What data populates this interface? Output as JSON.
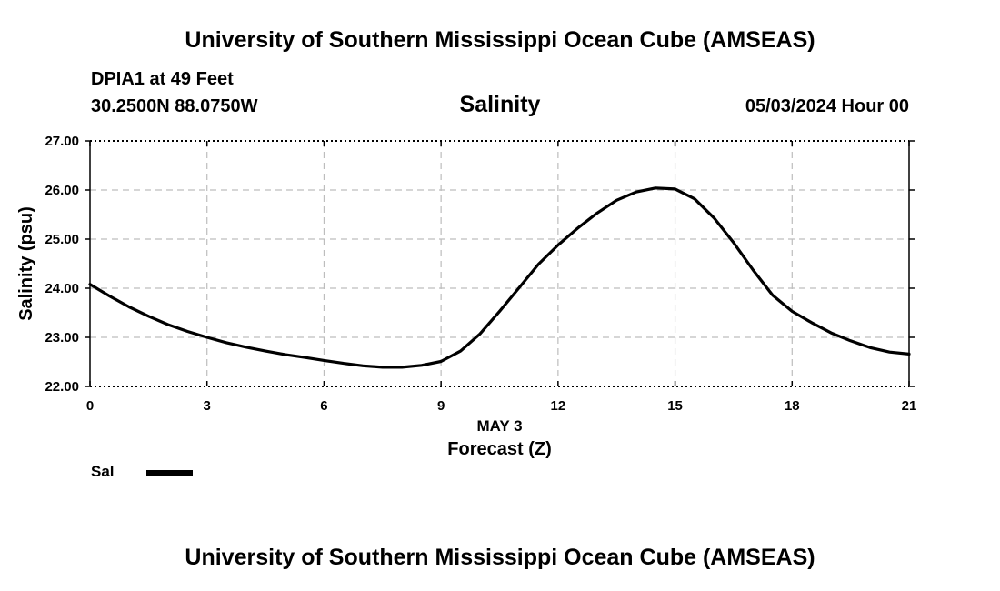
{
  "header": {
    "title": "University of Southern Mississippi Ocean Cube (AMSEAS)",
    "station": "DPIA1 at 49 Feet",
    "coords": "30.2500N  88.0750W",
    "datetime": "05/03/2024 Hour 00"
  },
  "footer": {
    "title": "University of Southern Mississippi Ocean Cube (AMSEAS)"
  },
  "legend": {
    "label": "Sal"
  },
  "chart_data": {
    "type": "line",
    "title": "Salinity",
    "xlabel": "Forecast (Z)",
    "xsublabel": "MAY 3",
    "ylabel": "Salinity (psu)",
    "xlim": [
      0,
      21
    ],
    "ylim": [
      22,
      27
    ],
    "xticks": [
      0,
      3,
      6,
      9,
      12,
      15,
      18,
      21
    ],
    "yticks": [
      22,
      23,
      24,
      25,
      26,
      27
    ],
    "ytick_labels": [
      "22.00",
      "23.00",
      "24.00",
      "25.00",
      "26.00",
      "27.00"
    ],
    "grid": true,
    "series": [
      {
        "name": "Sal",
        "color": "#000000",
        "x": [
          0,
          0.5,
          1,
          1.5,
          2,
          2.5,
          3,
          3.5,
          4,
          4.5,
          5,
          5.5,
          6,
          6.5,
          7,
          7.5,
          8,
          8.5,
          9,
          9.5,
          10,
          10.5,
          11,
          11.5,
          12,
          12.5,
          13,
          13.5,
          14,
          14.5,
          15,
          15.5,
          16,
          16.5,
          17,
          17.5,
          18,
          18.5,
          19,
          19.5,
          20,
          20.5,
          21
        ],
        "values": [
          24.08,
          23.84,
          23.62,
          23.43,
          23.26,
          23.12,
          23.0,
          22.89,
          22.8,
          22.72,
          22.65,
          22.59,
          22.53,
          22.47,
          22.42,
          22.39,
          22.39,
          22.43,
          22.51,
          22.72,
          23.07,
          23.53,
          24.01,
          24.49,
          24.88,
          25.22,
          25.53,
          25.79,
          25.96,
          26.04,
          26.02,
          25.82,
          25.43,
          24.93,
          24.37,
          23.86,
          23.53,
          23.3,
          23.09,
          22.93,
          22.79,
          22.7,
          22.66
        ]
      }
    ]
  }
}
